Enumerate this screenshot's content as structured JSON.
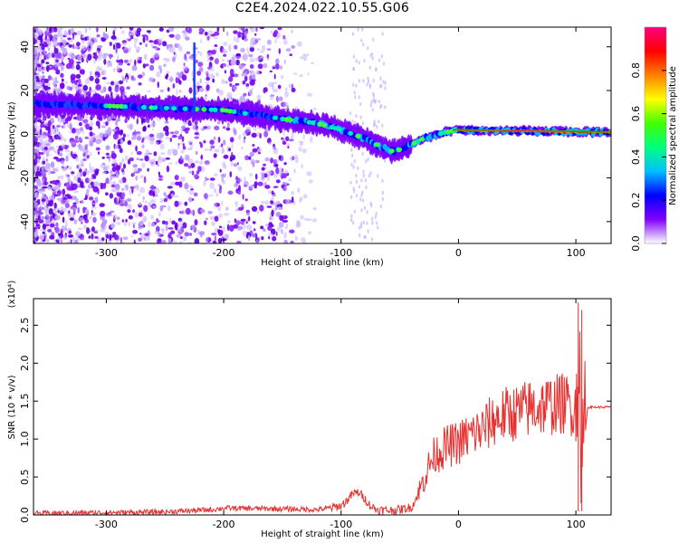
{
  "title": "C2E4.2024.022.10.55.G06",
  "chart_data": [
    {
      "type": "heatmap",
      "xlabel": "Height of straight line (km)",
      "ylabel": "Frequency (Hz)",
      "xlim": [
        -362,
        130
      ],
      "ylim": [
        -50,
        49
      ],
      "x_ticks": [
        -300,
        -200,
        -100,
        0,
        100
      ],
      "y_ticks": [
        -40,
        -20,
        0,
        20,
        40
      ],
      "colorbar": {
        "label": "Normalized spectral amplitude",
        "range": [
          0.0,
          1.0
        ],
        "ticks": [
          "0.0",
          "0.2",
          "0.4",
          "0.6",
          "0.8"
        ],
        "colors": [
          "#ffffff",
          "#8000ff",
          "#0000ff",
          "#00c0ff",
          "#00ff80",
          "#40ff00",
          "#ffff00",
          "#ff8000",
          "#ff0000",
          "#ff0080"
        ]
      },
      "ridge": {
        "x": [
          -362,
          -300,
          -250,
          -200,
          -150,
          -120,
          -100,
          -80,
          -65,
          -55,
          -45,
          -30,
          -10,
          0,
          20,
          60,
          100,
          130
        ],
        "freq": [
          14,
          13,
          12,
          11,
          7,
          5,
          2,
          -2,
          -6,
          -8,
          -6,
          -2,
          1,
          2,
          1.5,
          1.5,
          1,
          1
        ]
      }
    },
    {
      "type": "line",
      "xlabel": "Height of straight line (km)",
      "ylabel": "SNR (10 * v/v)",
      "y_multiplier": "(x10⁴)",
      "xlim": [
        -362,
        130
      ],
      "ylim": [
        0,
        2.85
      ],
      "x_ticks": [
        -300,
        -200,
        -100,
        0,
        100
      ],
      "y_ticks": [
        "0.0",
        "0.5",
        "1.0",
        "1.5",
        "2.0",
        "2.5"
      ],
      "y_tick_values": [
        0,
        0.5,
        1.0,
        1.5,
        2.0,
        2.5
      ],
      "color": "#e8302f",
      "series": {
        "x": [
          -362,
          -300,
          -250,
          -210,
          -200,
          -150,
          -120,
          -110,
          -100,
          -95,
          -90,
          -85,
          -80,
          -75,
          -70,
          -60,
          -50,
          -40,
          -35,
          -30,
          -25,
          -20,
          -10,
          0,
          10,
          20,
          30,
          40,
          50,
          60,
          70,
          80,
          90,
          95,
          100,
          103,
          105,
          107,
          110,
          120,
          130
        ],
        "y": [
          0.02,
          0.03,
          0.04,
          0.07,
          0.09,
          0.08,
          0.07,
          0.09,
          0.12,
          0.19,
          0.28,
          0.3,
          0.22,
          0.12,
          0.07,
          0.06,
          0.07,
          0.1,
          0.25,
          0.45,
          0.65,
          0.8,
          0.9,
          0.95,
          1.05,
          1.12,
          1.25,
          1.32,
          1.35,
          1.4,
          1.43,
          1.45,
          1.47,
          1.45,
          1.4,
          1.6,
          1.2,
          0.9,
          1.42,
          1.42,
          1.42
        ]
      },
      "annotations": [
        {
          "x": 102,
          "y": 2.8
        },
        {
          "x": 105,
          "y": 2.7
        },
        {
          "x": 103,
          "y": 0.06
        }
      ]
    }
  ]
}
